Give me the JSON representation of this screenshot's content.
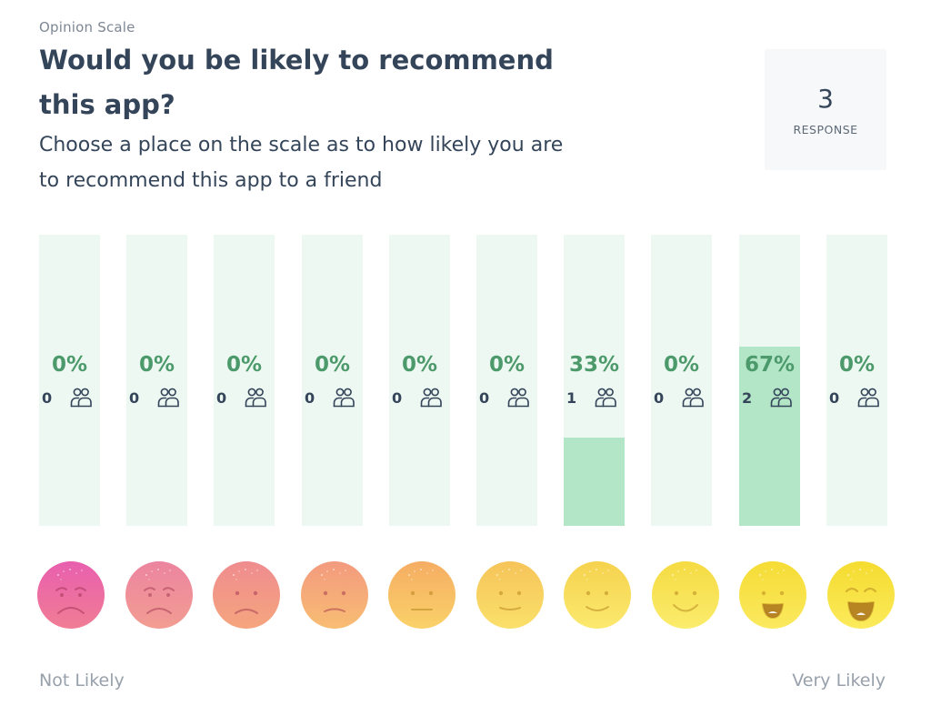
{
  "header": {
    "kicker": "Opinion Scale",
    "title": "Would you be likely to recommend this app?",
    "description": "Choose a place on the scale as to how likely you are to recommend this app to a friend"
  },
  "response": {
    "count": "3",
    "label": "RESPONSE"
  },
  "scale": {
    "left_label": "Not Likely",
    "right_label": "Very Likely",
    "options": [
      {
        "percent_label": "0%",
        "percent": 0,
        "count": "0"
      },
      {
        "percent_label": "0%",
        "percent": 0,
        "count": "0"
      },
      {
        "percent_label": "0%",
        "percent": 0,
        "count": "0"
      },
      {
        "percent_label": "0%",
        "percent": 0,
        "count": "0"
      },
      {
        "percent_label": "0%",
        "percent": 0,
        "count": "0"
      },
      {
        "percent_label": "0%",
        "percent": 0,
        "count": "0"
      },
      {
        "percent_label": "33%",
        "percent": 33,
        "count": "1"
      },
      {
        "percent_label": "0%",
        "percent": 0,
        "count": "0"
      },
      {
        "percent_label": "67%",
        "percent": 67,
        "count": "2"
      },
      {
        "percent_label": "0%",
        "percent": 0,
        "count": "0"
      }
    ],
    "faces": [
      {
        "icon": "very-sad-face-icon",
        "color_top": "#e85fae",
        "color_bottom": "#f07d95"
      },
      {
        "icon": "sad-face-icon",
        "color_top": "#ec84a0",
        "color_bottom": "#f29d92"
      },
      {
        "icon": "frown-face-icon",
        "color_top": "#ef8c8f",
        "color_bottom": "#f5a57e"
      },
      {
        "icon": "slight-frown-face-icon",
        "color_top": "#f39a7e",
        "color_bottom": "#f8bd73"
      },
      {
        "icon": "neutral-face-icon",
        "color_top": "#f5ad63",
        "color_bottom": "#fad168"
      },
      {
        "icon": "slight-smile-face-icon",
        "color_top": "#f6c45a",
        "color_bottom": "#fae06a"
      },
      {
        "icon": "smile-face-icon",
        "color_top": "#f5d24e",
        "color_bottom": "#fbe96e"
      },
      {
        "icon": "happy-face-icon",
        "color_top": "#f5db43",
        "color_bottom": "#fbec6c"
      },
      {
        "icon": "grin-face-icon",
        "color_top": "#f5dc35",
        "color_bottom": "#fbe95f"
      },
      {
        "icon": "laughing-face-icon",
        "color_top": "#f5dc30",
        "color_bottom": "#fbea5b"
      }
    ]
  },
  "colors": {
    "bar_track": "#eef8f2",
    "bar_fill": "#b3e5c7",
    "percent_text": "#4c9a6b",
    "title_text": "#34455a"
  }
}
